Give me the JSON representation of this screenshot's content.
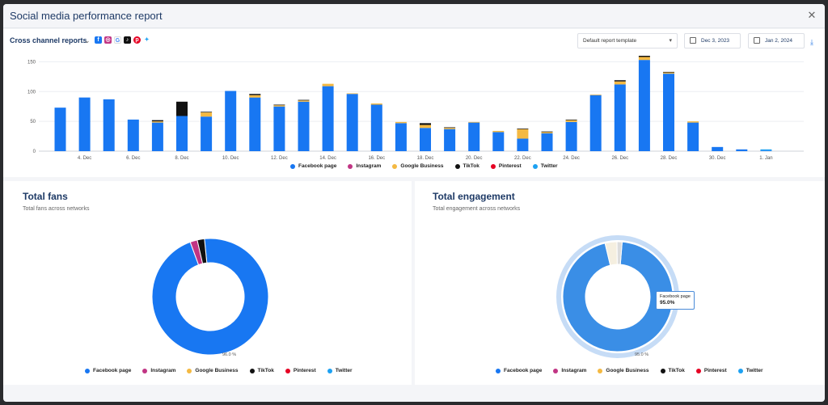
{
  "window": {
    "title": "Social media performance report"
  },
  "toolbar": {
    "report_name": "Cross channel reports",
    "template_value": "Default report template",
    "date_from": "Dec 3, 2023",
    "date_to": "Jan 2, 2024"
  },
  "networks": [
    {
      "name": "Facebook page",
      "color": "#1877f2"
    },
    {
      "name": "Instagram",
      "color": "#c13584"
    },
    {
      "name": "Google Business",
      "color": "#f4b942"
    },
    {
      "name": "TikTok",
      "color": "#111111"
    },
    {
      "name": "Pinterest",
      "color": "#e60023"
    },
    {
      "name": "Twitter",
      "color": "#1da1f2"
    }
  ],
  "chart_data": [
    {
      "type": "bar",
      "stacked": true,
      "x_tick_labels": [
        "4. Dec",
        "6. Dec",
        "8. Dec",
        "10. Dec",
        "12. Dec",
        "14. Dec",
        "16. Dec",
        "18. Dec",
        "20. Dec",
        "22. Dec",
        "24. Dec",
        "26. Dec",
        "28. Dec",
        "30. Dec",
        "1. Jan"
      ],
      "categories": [
        "3. Dec",
        "4. Dec",
        "5. Dec",
        "6. Dec",
        "7. Dec",
        "8. Dec",
        "9. Dec",
        "10. Dec",
        "11. Dec",
        "12. Dec",
        "13. Dec",
        "14. Dec",
        "15. Dec",
        "16. Dec",
        "17. Dec",
        "18. Dec",
        "19. Dec",
        "20. Dec",
        "21. Dec",
        "22. Dec",
        "23. Dec",
        "24. Dec",
        "25. Dec",
        "26. Dec",
        "27. Dec",
        "28. Dec",
        "29. Dec",
        "30. Dec",
        "31. Dec",
        "1. Jan"
      ],
      "y_ticks": [
        0,
        50,
        100,
        150
      ],
      "ylim": [
        0,
        160
      ],
      "series": [
        {
          "name": "Facebook page",
          "values": [
            73,
            90,
            87,
            53,
            48,
            59,
            58,
            101,
            90,
            75,
            83,
            109,
            96,
            78,
            47,
            39,
            37,
            48,
            32,
            21,
            30,
            49,
            94,
            112,
            153,
            130,
            48,
            7,
            3,
            1
          ]
        },
        {
          "name": "Instagram",
          "values": [
            0,
            0,
            0,
            0,
            0,
            0,
            0,
            0,
            0,
            0,
            0,
            0,
            0,
            0,
            0,
            0,
            0,
            0,
            0,
            0,
            0,
            0,
            0,
            0,
            0,
            0,
            0,
            0,
            0,
            0
          ]
        },
        {
          "name": "Google Business",
          "values": [
            0,
            0,
            0,
            0,
            2,
            0,
            7,
            0,
            4,
            2,
            2,
            4,
            1,
            2,
            2,
            5,
            2,
            1,
            2,
            16,
            2,
            3,
            1,
            5,
            5,
            2,
            2,
            0,
            0,
            0
          ]
        },
        {
          "name": "TikTok",
          "values": [
            0,
            0,
            0,
            0,
            2,
            24,
            1,
            0,
            2,
            1,
            1,
            0,
            0,
            0,
            0,
            3,
            1,
            0,
            0,
            1,
            1,
            1,
            0,
            2,
            2,
            1,
            0,
            0,
            0,
            0
          ]
        },
        {
          "name": "Pinterest",
          "values": [
            0,
            0,
            0,
            0,
            0,
            0,
            0,
            0,
            0,
            0,
            0,
            0,
            0,
            0,
            0,
            0,
            0,
            0,
            0,
            0,
            0,
            0,
            0,
            0,
            0,
            0,
            0,
            0,
            0,
            0
          ]
        },
        {
          "name": "Twitter",
          "values": [
            0,
            0,
            0,
            0,
            0,
            0,
            0,
            0,
            0,
            0,
            0,
            0,
            0,
            0,
            0,
            0,
            0,
            0,
            0,
            0,
            0,
            0,
            0,
            0,
            0,
            0,
            0,
            0,
            0,
            2
          ]
        }
      ],
      "legend": "bottom-center",
      "grid": true
    },
    {
      "type": "pie",
      "donut": true,
      "title": "Total fans",
      "subtitle": "Total fans across networks",
      "slices": [
        {
          "name": "Facebook page",
          "value": 96.0
        },
        {
          "name": "Instagram",
          "value": 2.0
        },
        {
          "name": "TikTok",
          "value": 2.0
        }
      ],
      "slice_label": "96.0 %",
      "legend": "bottom-center"
    },
    {
      "type": "pie",
      "donut": true,
      "title": "Total engagement",
      "subtitle": "Total engagement across networks",
      "slices": [
        {
          "name": "Facebook page",
          "value": 95.0
        },
        {
          "name": "Google Business",
          "value": 3.5
        },
        {
          "name": "TikTok",
          "value": 1.5
        }
      ],
      "slice_label": "95.0 %",
      "tooltip": {
        "name": "Facebook page",
        "value": "95.0%"
      },
      "legend": "bottom-center"
    }
  ]
}
